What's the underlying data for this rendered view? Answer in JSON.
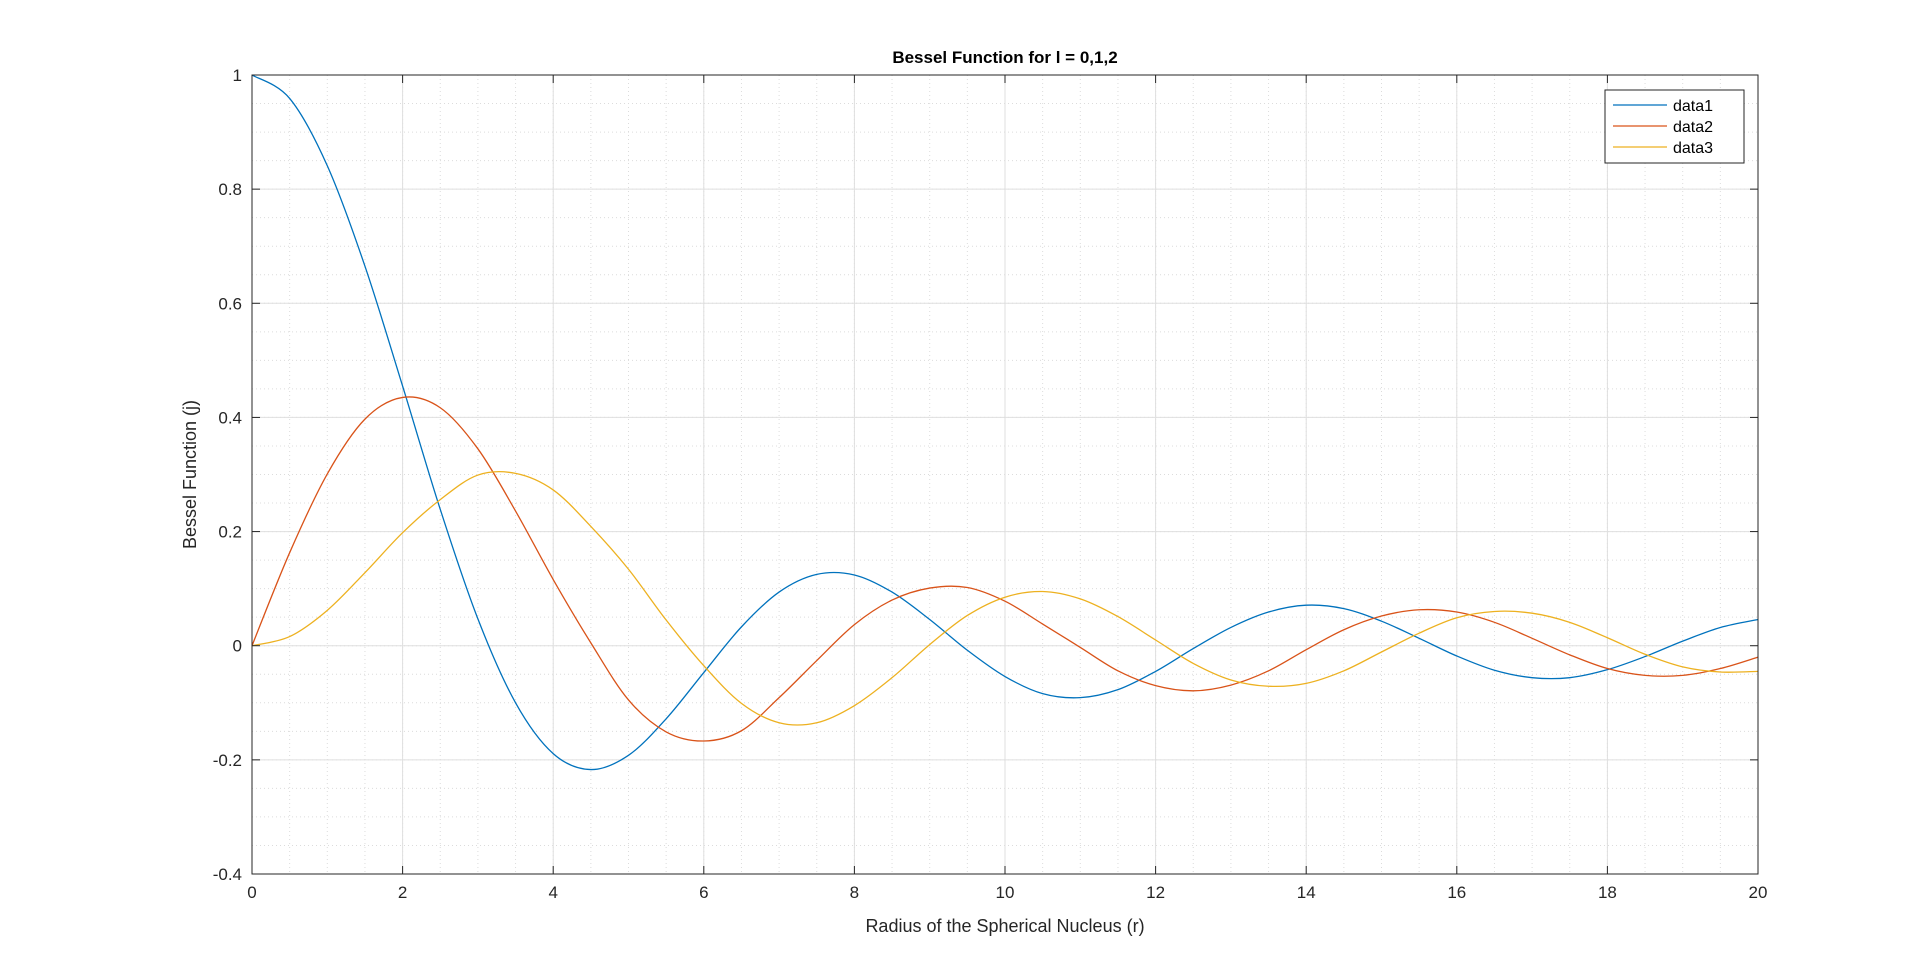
{
  "chart_data": {
    "type": "line",
    "title": "Bessel Function for l = 0,1,2",
    "xlabel": "Radius of the Spherical Nucleus (r)",
    "ylabel": "Bessel Function (j)",
    "xlim": [
      0,
      20
    ],
    "ylim": [
      -0.4,
      1
    ],
    "xticks": [
      0,
      2,
      4,
      6,
      8,
      10,
      12,
      14,
      16,
      18,
      20
    ],
    "yticks": [
      -0.4,
      -0.2,
      0,
      0.2,
      0.4,
      0.6,
      0.8,
      1
    ],
    "ytick_labels": [
      "-0.4",
      "-0.2",
      "0",
      "0.2",
      "0.4",
      "0.6",
      "0.8",
      "1"
    ],
    "grid": true,
    "minor_grid": true,
    "legend_position": "top-right",
    "x": [
      0,
      0.5,
      1,
      1.5,
      2,
      2.5,
      3,
      3.5,
      4,
      4.5,
      5,
      5.5,
      6,
      6.5,
      7,
      7.5,
      8,
      8.5,
      9,
      9.5,
      10,
      10.5,
      11,
      11.5,
      12,
      12.5,
      13,
      13.5,
      14,
      14.5,
      15,
      15.5,
      16,
      16.5,
      17,
      17.5,
      18,
      18.5,
      19,
      19.5,
      20
    ],
    "series": [
      {
        "name": "data1",
        "color": "#0072BD",
        "values": [
          1.0,
          0.959,
          0.841,
          0.665,
          0.455,
          0.239,
          0.047,
          -0.1,
          -0.189,
          -0.217,
          -0.192,
          -0.128,
          -0.047,
          0.033,
          0.094,
          0.125,
          0.124,
          0.094,
          0.046,
          -0.008,
          -0.054,
          -0.084,
          -0.091,
          -0.077,
          -0.045,
          -0.005,
          0.032,
          0.059,
          0.071,
          0.065,
          0.043,
          0.013,
          -0.018,
          -0.043,
          -0.056,
          -0.056,
          -0.042,
          -0.019,
          0.008,
          0.032,
          0.046
        ]
      },
      {
        "name": "data2",
        "color": "#D95319",
        "values": [
          0.0,
          0.163,
          0.301,
          0.397,
          0.435,
          0.417,
          0.345,
          0.236,
          0.116,
          0.005,
          -0.095,
          -0.151,
          -0.167,
          -0.149,
          -0.091,
          -0.026,
          0.037,
          0.08,
          0.101,
          0.102,
          0.078,
          0.038,
          -0.003,
          -0.044,
          -0.07,
          -0.079,
          -0.069,
          -0.044,
          -0.007,
          0.028,
          0.052,
          0.063,
          0.059,
          0.041,
          0.013,
          -0.016,
          -0.04,
          -0.052,
          -0.052,
          -0.04,
          -0.02
        ]
      },
      {
        "name": "data3",
        "color": "#EDB120",
        "values": [
          0.0,
          0.016,
          0.062,
          0.128,
          0.198,
          0.256,
          0.299,
          0.302,
          0.273,
          0.209,
          0.134,
          0.045,
          -0.035,
          -0.101,
          -0.135,
          -0.135,
          -0.105,
          -0.056,
          0.002,
          0.053,
          0.085,
          0.095,
          0.082,
          0.051,
          0.01,
          -0.031,
          -0.06,
          -0.071,
          -0.066,
          -0.044,
          -0.011,
          0.022,
          0.049,
          0.06,
          0.057,
          0.041,
          0.014,
          -0.015,
          -0.037,
          -0.046,
          -0.045
        ]
      }
    ]
  }
}
